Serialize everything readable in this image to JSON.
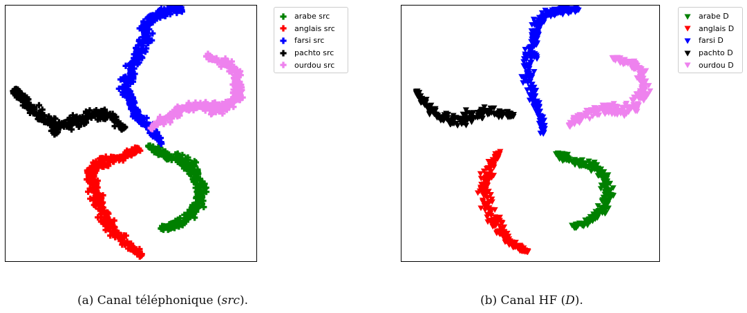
{
  "charts": [
    {
      "caption_prefix": "(a) Canal téléphonique (",
      "caption_em": "src",
      "caption_suffix": ")."
    },
    {
      "caption_prefix": "(b) Canal HF (",
      "caption_em": "D",
      "caption_suffix": ")."
    }
  ],
  "chart_data": [
    {
      "type": "scatter",
      "title": "",
      "xlabel": "",
      "ylabel": "",
      "axes_ticks": false,
      "grid": false,
      "legend_position": "outside-right",
      "marker": "plus",
      "series": [
        {
          "name": "arabe src",
          "color": "#008000",
          "x": [
            0.57,
            0.62,
            0.68,
            0.74,
            0.76,
            0.78,
            0.76,
            0.72,
            0.67,
            0.62
          ],
          "y": [
            0.45,
            0.42,
            0.4,
            0.38,
            0.33,
            0.27,
            0.21,
            0.17,
            0.14,
            0.13
          ]
        },
        {
          "name": "anglais src",
          "color": "#ff0000",
          "x": [
            0.53,
            0.49,
            0.42,
            0.37,
            0.34,
            0.36,
            0.38,
            0.4,
            0.44,
            0.5,
            0.54
          ],
          "y": [
            0.44,
            0.42,
            0.4,
            0.38,
            0.33,
            0.27,
            0.21,
            0.16,
            0.11,
            0.06,
            0.03
          ]
        },
        {
          "name": "farsi src",
          "color": "#0000ff",
          "x": [
            0.62,
            0.58,
            0.53,
            0.5,
            0.48,
            0.5,
            0.53,
            0.55,
            0.56,
            0.58,
            0.62,
            0.67,
            0.7
          ],
          "y": [
            0.46,
            0.52,
            0.56,
            0.62,
            0.68,
            0.74,
            0.8,
            0.86,
            0.91,
            0.95,
            0.97,
            0.98,
            0.98
          ]
        },
        {
          "name": "pachto src",
          "color": "#000000",
          "x": [
            0.47,
            0.43,
            0.38,
            0.33,
            0.27,
            0.21,
            0.15,
            0.1,
            0.06,
            0.04
          ],
          "y": [
            0.52,
            0.56,
            0.58,
            0.57,
            0.54,
            0.52,
            0.56,
            0.61,
            0.65,
            0.67
          ]
        },
        {
          "name": "ourdou src",
          "color": "#ee82ee",
          "x": [
            0.58,
            0.64,
            0.7,
            0.77,
            0.84,
            0.89,
            0.92,
            0.93,
            0.91,
            0.86,
            0.8
          ],
          "y": [
            0.52,
            0.56,
            0.59,
            0.61,
            0.6,
            0.61,
            0.65,
            0.7,
            0.75,
            0.78,
            0.8
          ]
        }
      ]
    },
    {
      "type": "scatter",
      "title": "",
      "xlabel": "",
      "ylabel": "",
      "axes_ticks": false,
      "grid": false,
      "legend_position": "outside-right",
      "marker": "triangle-down",
      "series": [
        {
          "name": "arabe D",
          "color": "#008000",
          "x": [
            0.6,
            0.65,
            0.71,
            0.76,
            0.79,
            0.8,
            0.78,
            0.73,
            0.67
          ],
          "y": [
            0.42,
            0.4,
            0.38,
            0.36,
            0.32,
            0.26,
            0.2,
            0.16,
            0.14
          ]
        },
        {
          "name": "anglais D",
          "color": "#ff0000",
          "x": [
            0.38,
            0.35,
            0.33,
            0.32,
            0.34,
            0.37,
            0.4,
            0.44,
            0.49
          ],
          "y": [
            0.42,
            0.38,
            0.33,
            0.27,
            0.21,
            0.15,
            0.1,
            0.06,
            0.04
          ]
        },
        {
          "name": "farsi D",
          "color": "#0000ff",
          "x": [
            0.55,
            0.54,
            0.52,
            0.5,
            0.49,
            0.5,
            0.51,
            0.52,
            0.54,
            0.58,
            0.63,
            0.68
          ],
          "y": [
            0.5,
            0.56,
            0.62,
            0.68,
            0.74,
            0.8,
            0.85,
            0.9,
            0.94,
            0.97,
            0.98,
            0.98
          ]
        },
        {
          "name": "pachto D",
          "color": "#000000",
          "x": [
            0.43,
            0.38,
            0.32,
            0.26,
            0.2,
            0.14,
            0.09,
            0.06
          ],
          "y": [
            0.57,
            0.58,
            0.58,
            0.56,
            0.54,
            0.57,
            0.62,
            0.66
          ]
        },
        {
          "name": "ourdou D",
          "color": "#ee82ee",
          "x": [
            0.65,
            0.7,
            0.75,
            0.8,
            0.85,
            0.9,
            0.93,
            0.94,
            0.92,
            0.88,
            0.82
          ],
          "y": [
            0.53,
            0.57,
            0.59,
            0.6,
            0.59,
            0.6,
            0.64,
            0.7,
            0.75,
            0.78,
            0.79
          ]
        }
      ]
    }
  ]
}
